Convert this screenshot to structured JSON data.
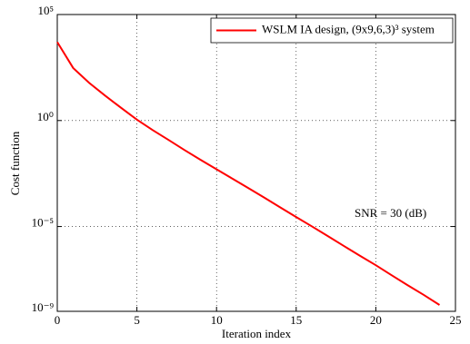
{
  "chart_data": {
    "type": "line",
    "xlabel": "Iteration index",
    "ylabel": "Cost function",
    "annotation": "SNR = 30 (dB)",
    "log_y": true,
    "grid": true,
    "legend": "upper right",
    "x": [
      0,
      1,
      2,
      3,
      4,
      5,
      6,
      7,
      8,
      9,
      10,
      11,
      12,
      13,
      14,
      15,
      16,
      17,
      18,
      19,
      20,
      21,
      22,
      23,
      24
    ],
    "series": [
      {
        "name": "WSLM IA design, (9x9,6,3)³ system",
        "color": "#ff0000",
        "values": [
          5000,
          300,
          60,
          15,
          4,
          1.1,
          0.35,
          0.12,
          0.04,
          0.014,
          0.005,
          0.0018,
          0.00065,
          0.00023,
          8e-05,
          2.8e-05,
          1e-05,
          3.5e-06,
          1.2e-06,
          4.2e-07,
          1.5e-07,
          5e-08,
          1.7e-08,
          6e-09,
          2e-09
        ]
      }
    ],
    "xlim": [
      0,
      25
    ],
    "xticks": [
      0,
      5,
      10,
      15,
      20,
      25
    ],
    "ylim": [
      1e-09,
      100000
    ],
    "yticks": [
      {
        "value": 100000,
        "label": "10⁵"
      },
      {
        "value": 1,
        "label": "10⁰"
      },
      {
        "value": 1e-05,
        "label": "10⁻⁵"
      },
      {
        "value": 1e-09,
        "label": "10⁻⁹"
      }
    ]
  }
}
